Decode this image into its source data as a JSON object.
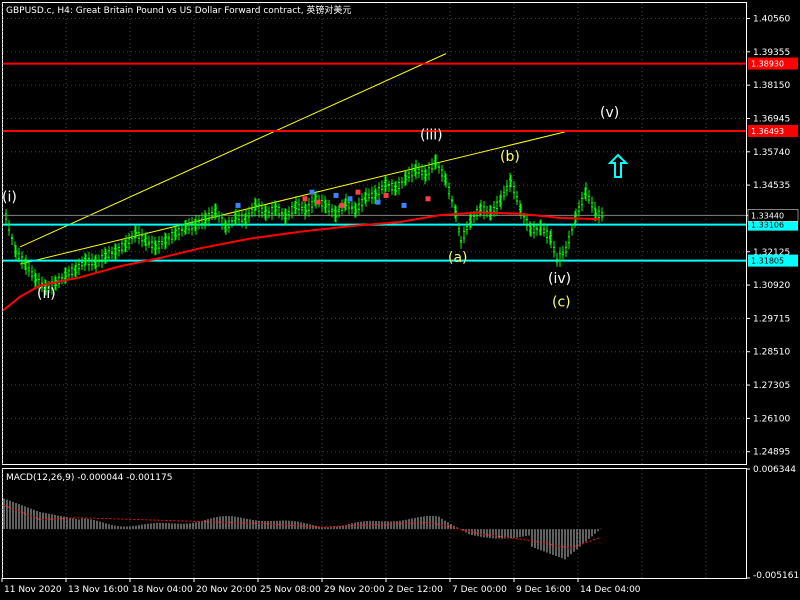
{
  "window": {
    "title": "GBPUSD.c, H4:  Great Britain Pound vs US Dollar Forward contract, 英镑对美元"
  },
  "main_chart": {
    "symbol": "GBPUSD.c",
    "timeframe": "H4",
    "y_ticks": [
      "1.40560",
      "1.39355",
      "1.38150",
      "1.36945",
      "1.35740",
      "1.34535",
      "1.33440",
      "1.32125",
      "1.30920",
      "1.29715",
      "1.28510",
      "1.27305",
      "1.26100",
      "1.24895"
    ],
    "y_tick_values": [
      1.4056,
      1.39355,
      1.3815,
      1.36945,
      1.3574,
      1.34535,
      1.3344,
      1.32125,
      1.3092,
      1.29715,
      1.2851,
      1.27305,
      1.261,
      1.24895
    ],
    "y_range": [
      1.2445,
      1.4112
    ],
    "horizontal_lines": [
      {
        "price": "1.38930",
        "value": 1.3893,
        "color": "#ff0000"
      },
      {
        "price": "1.36493",
        "value": 1.36493,
        "color": "#ff0000"
      },
      {
        "price": "1.33106",
        "value": 1.33106,
        "color": "#00ffff"
      },
      {
        "price": "1.31805",
        "value": 1.31805,
        "color": "#00ffff"
      }
    ],
    "current_price": "1.33440",
    "wave_labels": [
      {
        "text": "(i)",
        "color": "#ffffff"
      },
      {
        "text": "(ii)",
        "color": "#ffffff"
      },
      {
        "text": "(iii)",
        "color": "#ffffff"
      },
      {
        "text": "(iv)",
        "color": "#ffffff"
      },
      {
        "text": "(v)",
        "color": "#ffffff"
      },
      {
        "text": "(a)",
        "color": "#ffff66"
      },
      {
        "text": "(b)",
        "color": "#ffff66"
      },
      {
        "text": "(c)",
        "color": "#ffff66"
      }
    ],
    "arrow": {
      "direction": "up",
      "color": "#00ffff"
    }
  },
  "macd": {
    "label": "MACD(12,26,9) -0.000044 -0.001175",
    "y_ticks": [
      "0.006344",
      "-0.005161"
    ]
  },
  "x_axis": {
    "ticks": [
      "11 Nov 2020",
      "13 Nov 16:00",
      "18 Nov 04:00",
      "20 Nov 20:00",
      "25 Nov 08:00",
      "29 Nov 20:00",
      "2 Dec 12:00",
      "7 Dec 00:00",
      "9 Dec 16:00",
      "14 Dec 04:00"
    ]
  },
  "colors": {
    "background": "#000000",
    "grid": "#2f4f4f",
    "candles": "#00ff00",
    "moving_average": "#ff0000",
    "channel": "#ffff00",
    "macd_hist": "#c0c0c0",
    "macd_signal": "#ff0000"
  }
}
